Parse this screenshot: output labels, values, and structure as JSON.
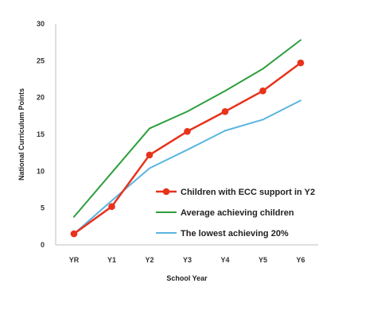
{
  "chart_data": {
    "type": "line",
    "title": "",
    "xlabel": "School Year",
    "ylabel": "National Curriculum Points",
    "categories": [
      "YR",
      "Y1",
      "Y2",
      "Y3",
      "Y4",
      "Y5",
      "Y6"
    ],
    "ylim": [
      0,
      30
    ],
    "yticks": [
      0,
      5,
      10,
      15,
      20,
      25,
      30
    ],
    "grid": false,
    "legend_position": "center-right",
    "series": [
      {
        "name": "Children with ECC support in Y2",
        "color": "#e8321c",
        "marker": true,
        "values": [
          1.5,
          5.2,
          12.2,
          15.4,
          18.1,
          20.9,
          24.7
        ]
      },
      {
        "name": "Average achieving children",
        "color": "#2e9e3e",
        "marker": false,
        "values": [
          3.8,
          9.8,
          15.8,
          18.1,
          20.9,
          23.9,
          27.8
        ]
      },
      {
        "name": "The lowest achieving 20%",
        "color": "#5bb5e0",
        "marker": false,
        "values": [
          1.5,
          6.0,
          10.4,
          12.9,
          15.5,
          17.0,
          19.6
        ]
      }
    ]
  }
}
